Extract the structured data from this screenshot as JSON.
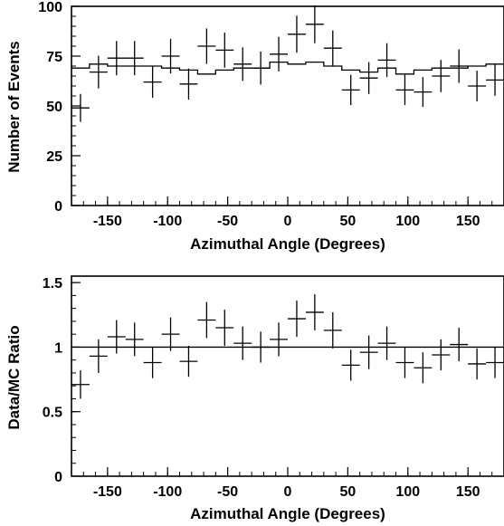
{
  "chart_data": [
    {
      "type": "scatter",
      "xlabel": "Azimuthal Angle (Degrees)",
      "ylabel": "Number of Events",
      "xlim": [
        -180,
        180
      ],
      "ylim": [
        0,
        100
      ],
      "xticks": [
        -150,
        -100,
        -50,
        0,
        50,
        100,
        150
      ],
      "yticks": [
        0,
        25,
        50,
        75,
        100
      ],
      "xtick_labels": [
        "-150",
        "-100",
        "-50",
        "0",
        "50",
        "100",
        "150"
      ],
      "ytick_labels": [
        "0",
        "25",
        "50",
        "75",
        "100"
      ],
      "minor_xtick_step": 10,
      "minor_ytick_step": 5,
      "bin_width": 15,
      "x": [
        -172.5,
        -157.5,
        -142.5,
        -127.5,
        -112.5,
        -97.5,
        -82.5,
        -67.5,
        -52.5,
        -37.5,
        -22.5,
        -7.5,
        7.5,
        22.5,
        37.5,
        52.5,
        67.5,
        82.5,
        97.5,
        112.5,
        127.5,
        142.5,
        157.5,
        172.5
      ],
      "series": [
        {
          "style": "points-with-error-bars",
          "values": [
            49,
            67,
            74,
            74,
            62,
            75,
            61,
            80,
            78,
            71,
            69,
            76,
            86,
            91,
            79,
            58,
            64,
            73,
            58,
            57,
            65,
            70,
            60,
            63
          ],
          "errors": [
            7,
            8.2,
            8.6,
            8.6,
            7.9,
            8.7,
            7.8,
            8.9,
            8.8,
            8.4,
            8.3,
            8.7,
            9.3,
            9.5,
            8.9,
            7.6,
            8,
            8.5,
            7.6,
            7.5,
            8.1,
            8.4,
            7.7,
            7.9
          ]
        },
        {
          "style": "step-histogram",
          "values": [
            69,
            71,
            70,
            70,
            70,
            69,
            68,
            66,
            68,
            69,
            69,
            72,
            71,
            72,
            70,
            68,
            67,
            69,
            66,
            68,
            69,
            69,
            70,
            71
          ]
        }
      ]
    },
    {
      "type": "scatter",
      "xlabel": "Azimuthal Angle (Degrees)",
      "ylabel": "Data/MC Ratio",
      "xlim": [
        -180,
        180
      ],
      "ylim": [
        0,
        1.55
      ],
      "xticks": [
        -150,
        -100,
        -50,
        0,
        50,
        100,
        150
      ],
      "yticks": [
        0,
        0.5,
        1,
        1.5
      ],
      "xtick_labels": [
        "-150",
        "-100",
        "-50",
        "0",
        "50",
        "100",
        "150"
      ],
      "ytick_labels": [
        "0",
        "0.5",
        "1",
        "1.5"
      ],
      "minor_xtick_step": 10,
      "minor_ytick_step": 0.1,
      "reference_line": 1,
      "x": [
        -172.5,
        -157.5,
        -142.5,
        -127.5,
        -112.5,
        -97.5,
        -82.5,
        -67.5,
        -52.5,
        -37.5,
        -22.5,
        -7.5,
        7.5,
        22.5,
        37.5,
        52.5,
        67.5,
        82.5,
        97.5,
        112.5,
        127.5,
        142.5,
        157.5,
        172.5
      ],
      "series": [
        {
          "style": "points-with-error-bars",
          "values": [
            0.71,
            0.93,
            1.08,
            1.06,
            0.88,
            1.1,
            0.89,
            1.21,
            1.15,
            1.03,
            1.0,
            1.06,
            1.22,
            1.27,
            1.13,
            0.86,
            0.96,
            1.03,
            0.88,
            0.84,
            0.94,
            1.02,
            0.87,
            0.88
          ],
          "errors": [
            0.11,
            0.13,
            0.13,
            0.13,
            0.12,
            0.13,
            0.12,
            0.14,
            0.14,
            0.13,
            0.12,
            0.13,
            0.14,
            0.14,
            0.14,
            0.12,
            0.13,
            0.13,
            0.12,
            0.12,
            0.12,
            0.13,
            0.12,
            0.12
          ]
        }
      ]
    }
  ]
}
